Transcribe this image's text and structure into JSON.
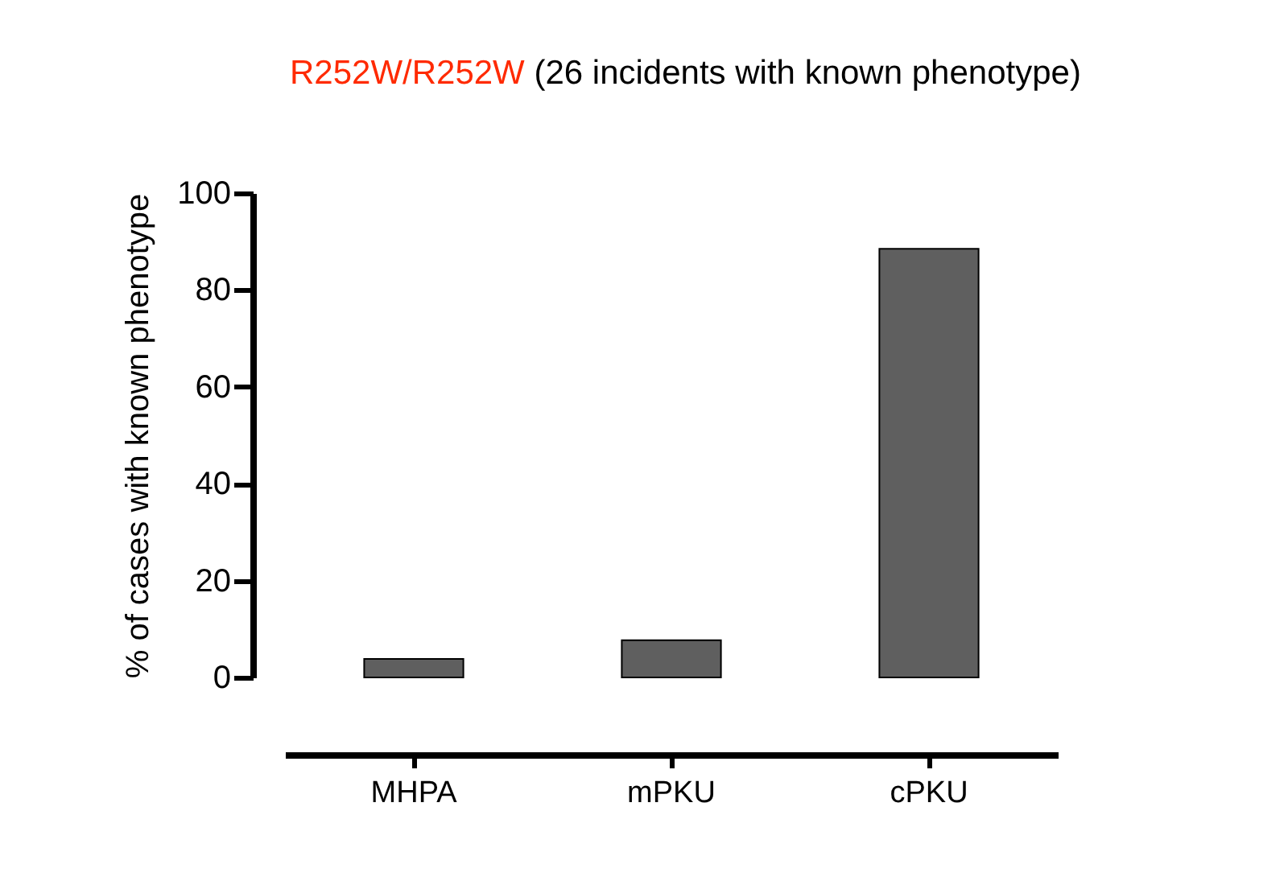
{
  "chart_data": {
    "type": "bar",
    "title": "R252W/R252W",
    "subtitle": "(26 incidents with known phenotype)",
    "ylabel": "% of cases with known phenotype",
    "categories": [
      "MHPA",
      "mPKU",
      "cPKU"
    ],
    "values": [
      3.8,
      7.7,
      88.5
    ],
    "color": "#5f5f5f",
    "ylim": [
      0,
      100
    ],
    "yticks": [
      0,
      20,
      40,
      60,
      80,
      100
    ],
    "grid": false
  }
}
